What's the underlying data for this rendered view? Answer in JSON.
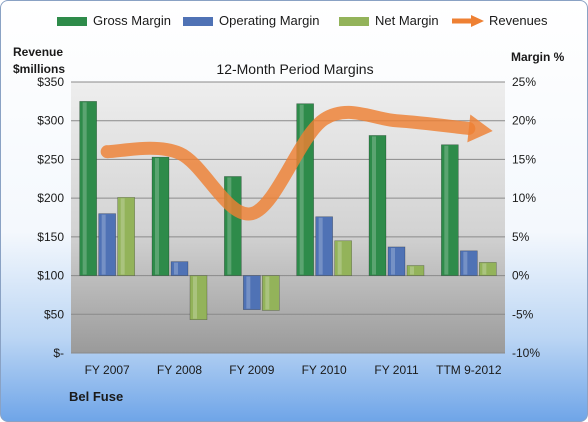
{
  "chart_data": {
    "type": "bar",
    "title": "12-Month Period Margins",
    "categories": [
      "FY 2007",
      "FY 2008",
      "FY 2009",
      "FY 2010",
      "FY 2011",
      "TTM 9-2012"
    ],
    "series": [
      {
        "name": "Gross Margin",
        "axis": "right",
        "values": [
          22.5,
          15.3,
          12.8,
          22.2,
          18.1,
          16.9
        ],
        "color": "#2e8b4a"
      },
      {
        "name": "Operating Margin",
        "axis": "right",
        "values": [
          8.0,
          1.8,
          -4.4,
          7.6,
          3.7,
          3.2
        ],
        "color": "#4f72b5"
      },
      {
        "name": "Net Margin",
        "axis": "right",
        "values": [
          10.1,
          -5.7,
          -4.5,
          4.5,
          1.3,
          1.7
        ],
        "color": "#93b35a"
      },
      {
        "name": "Revenues",
        "axis": "left",
        "type": "line",
        "values": [
          260,
          258,
          180,
          302,
          300,
          290
        ],
        "color": "#ee8033"
      }
    ],
    "y_left": {
      "label_line1": "Revenue",
      "label_line2": "$millions",
      "ylim": [
        0,
        350
      ],
      "ticks": [
        "$350",
        "$300",
        "$250",
        "$200",
        "$150",
        "$100",
        "$50",
        "$-"
      ]
    },
    "y_right": {
      "label": "Margin %",
      "ylim": [
        -10,
        25
      ],
      "ticks": [
        "25%",
        "20%",
        "15%",
        "10%",
        "5%",
        "0%",
        "-5%",
        "-10%"
      ]
    },
    "legend_position": "top",
    "grid": true
  },
  "footer": {
    "company": "Bel Fuse"
  }
}
